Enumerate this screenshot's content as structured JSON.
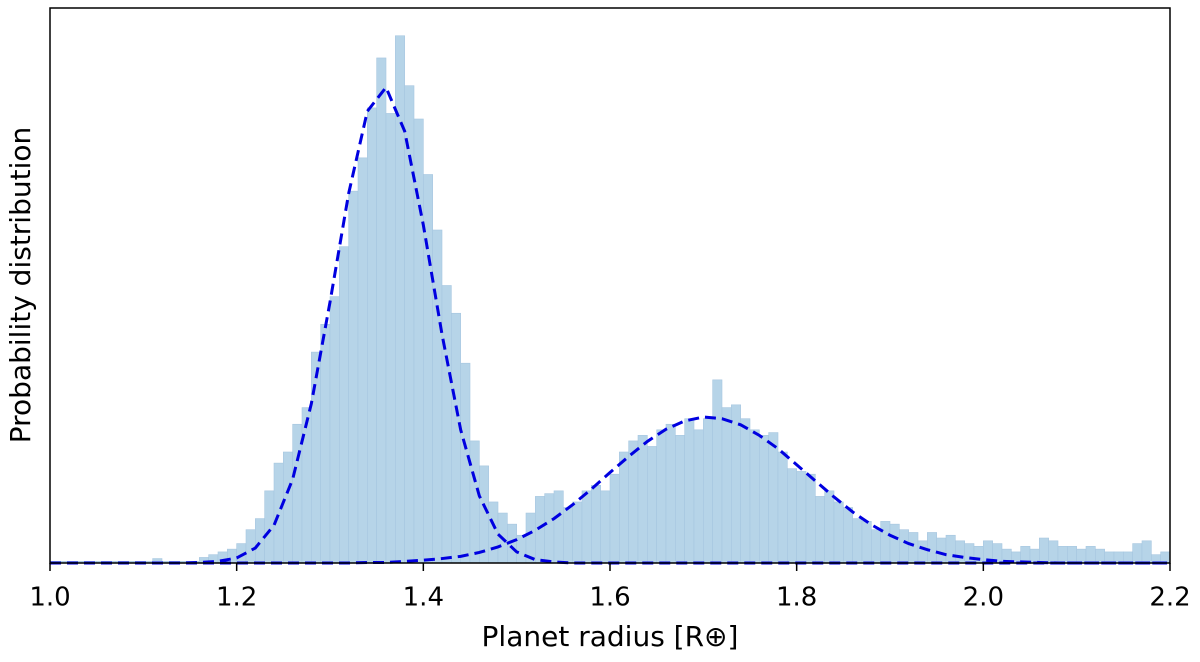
{
  "chart_data": [
    {
      "type": "histogram",
      "xlabel": "Planet radius [R⊕]",
      "ylabel": "Probability distribution",
      "xlim": [
        1.0,
        2.2
      ],
      "xticks": [
        {
          "value": 1.0,
          "label": "1.0"
        },
        1.2,
        1.4,
        1.6,
        1.8,
        {
          "value": 2.0,
          "label": "2.0"
        },
        2.2
      ],
      "ylim": [
        0,
        1
      ],
      "color": "#b6d4e8",
      "bins": [
        1.0,
        1.01,
        1.02,
        1.03,
        1.04,
        1.05,
        1.06,
        1.07,
        1.08,
        1.09,
        1.1,
        1.11,
        1.12,
        1.13,
        1.14,
        1.15,
        1.16,
        1.17,
        1.18,
        1.19,
        1.2,
        1.21,
        1.22,
        1.23,
        1.24,
        1.25,
        1.26,
        1.27,
        1.28,
        1.29,
        1.3,
        1.31,
        1.32,
        1.33,
        1.34,
        1.35,
        1.36,
        1.37,
        1.38,
        1.39,
        1.4,
        1.41,
        1.42,
        1.43,
        1.44,
        1.45,
        1.46,
        1.47,
        1.48,
        1.49,
        1.5,
        1.51,
        1.52,
        1.53,
        1.54,
        1.55,
        1.56,
        1.57,
        1.58,
        1.59,
        1.6,
        1.61,
        1.62,
        1.63,
        1.64,
        1.65,
        1.66,
        1.67,
        1.68,
        1.69,
        1.7,
        1.71,
        1.72,
        1.73,
        1.74,
        1.75,
        1.76,
        1.77,
        1.78,
        1.79,
        1.8,
        1.81,
        1.82,
        1.83,
        1.84,
        1.85,
        1.86,
        1.87,
        1.88,
        1.89,
        1.9,
        1.91,
        1.92,
        1.93,
        1.94,
        1.95,
        1.96,
        1.97,
        1.98,
        1.99,
        2.0,
        2.01,
        2.02,
        2.03,
        2.04,
        2.05,
        2.06,
        2.07,
        2.08,
        2.09,
        2.1,
        2.11,
        2.12,
        2.13,
        2.14,
        2.15,
        2.16,
        2.17,
        2.18,
        2.19,
        2.2
      ],
      "values": [
        0.003,
        0.003,
        0.003,
        0.003,
        0.003,
        0.003,
        0.003,
        0.003,
        0.003,
        0.003,
        0.003,
        0.008,
        0.003,
        0.003,
        0.003,
        0.003,
        0.01,
        0.015,
        0.02,
        0.025,
        0.035,
        0.06,
        0.08,
        0.13,
        0.18,
        0.2,
        0.25,
        0.28,
        0.38,
        0.43,
        0.48,
        0.57,
        0.67,
        0.73,
        0.82,
        0.91,
        0.81,
        0.95,
        0.86,
        0.8,
        0.7,
        0.6,
        0.5,
        0.45,
        0.36,
        0.22,
        0.175,
        0.11,
        0.09,
        0.07,
        0.05,
        0.09,
        0.12,
        0.125,
        0.13,
        0.1,
        0.11,
        0.13,
        0.14,
        0.13,
        0.16,
        0.2,
        0.22,
        0.23,
        0.21,
        0.24,
        0.25,
        0.23,
        0.26,
        0.24,
        0.26,
        0.33,
        0.28,
        0.285,
        0.26,
        0.24,
        0.23,
        0.235,
        0.2,
        0.17,
        0.165,
        0.16,
        0.12,
        0.13,
        0.11,
        0.1,
        0.08,
        0.075,
        0.06,
        0.075,
        0.07,
        0.06,
        0.055,
        0.04,
        0.055,
        0.045,
        0.05,
        0.04,
        0.035,
        0.03,
        0.04,
        0.035,
        0.025,
        0.02,
        0.03,
        0.025,
        0.045,
        0.04,
        0.03,
        0.03,
        0.025,
        0.03,
        0.025,
        0.02,
        0.02,
        0.02,
        0.035,
        0.04,
        0.015,
        0.02
      ]
    },
    {
      "type": "line",
      "dashed": true,
      "x": [
        1.0,
        1.02,
        1.04,
        1.06,
        1.08,
        1.1,
        1.12,
        1.14,
        1.16,
        1.18,
        1.2,
        1.22,
        1.24,
        1.26,
        1.28,
        1.3,
        1.32,
        1.34,
        1.36,
        1.38,
        1.4,
        1.42,
        1.44,
        1.46,
        1.48,
        1.5,
        1.52,
        1.54,
        1.56,
        1.58,
        1.6,
        1.62,
        1.64,
        1.66,
        1.68,
        1.7,
        1.72,
        1.74,
        1.76,
        1.78,
        1.8,
        1.82,
        1.84,
        1.86,
        1.88,
        1.9,
        1.92,
        1.94,
        1.96,
        1.98,
        2.0,
        2.02,
        2.04,
        2.06,
        2.08,
        2.1,
        2.12,
        2.14,
        2.16,
        2.18,
        2.2
      ],
      "series": [
        {
          "color": "#0000e0",
          "values": [
            0,
            0,
            0,
            0,
            0,
            0,
            0,
            0,
            0.001,
            0.003,
            0.009,
            0.027,
            0.068,
            0.151,
            0.287,
            0.47,
            0.666,
            0.814,
            0.857,
            0.778,
            0.609,
            0.412,
            0.24,
            0.121,
            0.052,
            0.02,
            0.006,
            0.002,
            0,
            0,
            0,
            0,
            0,
            0,
            0,
            0,
            0,
            0,
            0,
            0,
            0,
            0,
            0,
            0,
            0,
            0,
            0,
            0,
            0,
            0,
            0,
            0,
            0,
            0,
            0,
            0,
            0,
            0,
            0,
            0,
            0
          ]
        },
        {
          "color": "#0000e0",
          "values": [
            0,
            0,
            0,
            0,
            0,
            0,
            0,
            0,
            0,
            0,
            0,
            0,
            0,
            0,
            0,
            0,
            0,
            0.001,
            0.001,
            0.003,
            0.005,
            0.008,
            0.012,
            0.019,
            0.029,
            0.042,
            0.059,
            0.08,
            0.105,
            0.133,
            0.163,
            0.192,
            0.219,
            0.241,
            0.256,
            0.263,
            0.26,
            0.249,
            0.23,
            0.206,
            0.177,
            0.148,
            0.119,
            0.092,
            0.069,
            0.05,
            0.035,
            0.024,
            0.015,
            0.01,
            0.006,
            0.003,
            0.002,
            0.001,
            0,
            0,
            0,
            0,
            0,
            0,
            0
          ]
        }
      ]
    }
  ]
}
